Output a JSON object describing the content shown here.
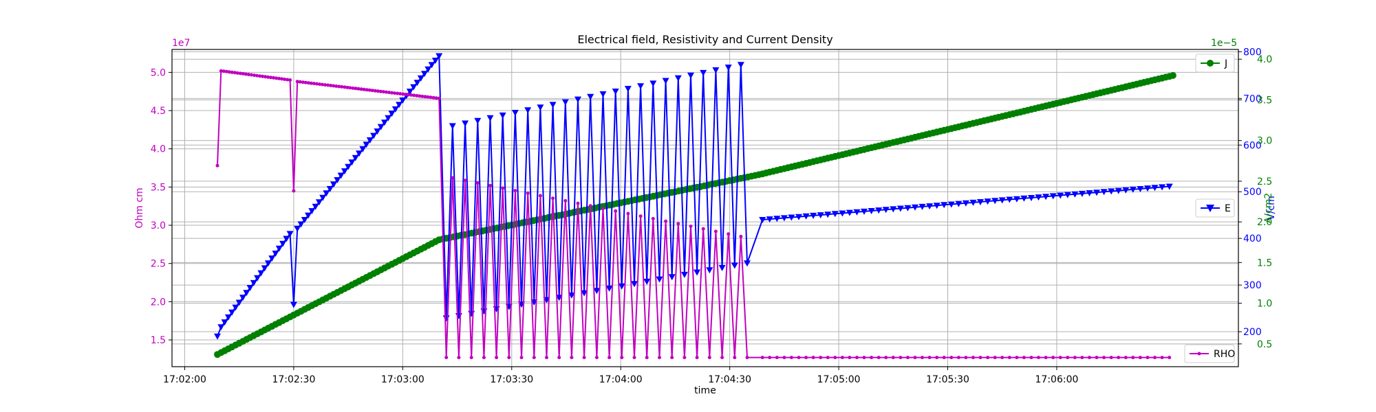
{
  "chart_data": {
    "type": "line",
    "title": "Electrical field, Resistivity and Current Density",
    "xlabel": "time",
    "x_tick_labels": [
      "17:02:00",
      "17:02:30",
      "17:03:00",
      "17:03:30",
      "17:04:00",
      "17:04:30",
      "17:05:00",
      "17:05:30",
      "17:06:00"
    ],
    "xlim_seconds_after_17_02_00": [
      -3.5,
      290
    ],
    "grid": true,
    "axes": {
      "rho": {
        "label": "Ohm cm",
        "scale_label": "1e7",
        "ylim": [
          1.15,
          5.3
        ],
        "ticks": [
          1.5,
          2.0,
          2.5,
          3.0,
          3.5,
          4.0,
          4.5,
          5.0
        ],
        "tick_labels": [
          "1.5",
          "2.0",
          "2.5",
          "3.0",
          "3.5",
          "4.0",
          "4.5",
          "5.0"
        ],
        "color": "#c000c0"
      },
      "E": {
        "label": "V/cm",
        "ylim": [
          125,
          805
        ],
        "ticks": [
          200,
          300,
          400,
          500,
          600,
          700,
          800
        ],
        "tick_labels": [
          "200",
          "300",
          "400",
          "500",
          "600",
          "700",
          "800"
        ],
        "color": "#0000ff"
      },
      "J": {
        "label": "A/cm2",
        "scale_label": "1e−5",
        "ylim": [
          0.22,
          4.12
        ],
        "ticks": [
          0.5,
          1.0,
          1.5,
          2.0,
          2.5,
          3.0,
          3.5,
          4.0
        ],
        "tick_labels": [
          "0.5",
          "1.0",
          "1.5",
          "2.0",
          "2.5",
          "3.0",
          "3.5",
          "4.0"
        ],
        "color": "#008000"
      }
    },
    "series": [
      {
        "name": "RHO",
        "axis": "rho",
        "color": "#c000c0",
        "marker": "point",
        "legend_position": "bottom-right",
        "description_note": "",
        "segments": [
          {
            "t0": 9,
            "t1": 9,
            "v": 3.78
          },
          {
            "t0": 10,
            "t1": 29,
            "v0": 5.02,
            "v1": 4.9
          },
          {
            "t0": 30,
            "t1": 30,
            "v": 3.45
          },
          {
            "t0": 31,
            "t1": 70,
            "v0": 4.88,
            "v1": 4.66
          }
        ],
        "oscillation": {
          "t_start": 72,
          "t_end": 158,
          "period": 3.45,
          "low": 1.27,
          "high_start": 3.62,
          "high_end": 2.82
        },
        "tail": {
          "t0": 159,
          "t1": 272,
          "v": 1.27
        }
      },
      {
        "name": "E",
        "axis": "E",
        "color": "#0000ff",
        "marker": "triangle-down",
        "legend_position": "center-right",
        "ramp": [
          {
            "t": 9,
            "v": 190
          },
          {
            "t": 10,
            "v": 210
          },
          {
            "t": 29,
            "v": 410
          },
          {
            "t": 30,
            "v": 258
          },
          {
            "t": 31,
            "v": 421
          },
          {
            "t": 70,
            "v": 791
          }
        ],
        "oscillation": {
          "t_start": 72,
          "t_end": 158,
          "period": 3.45,
          "low_start": 229,
          "low_end": 347,
          "high_start": 641,
          "high_end": 778
        },
        "tail": {
          "t0": 159,
          "t1": 272,
          "v0": 440,
          "v1": 512
        }
      },
      {
        "name": "J",
        "axis": "J",
        "color": "#008000",
        "marker": "circle",
        "legend_position": "top-right",
        "points": [
          {
            "t": 9,
            "v": 0.37
          },
          {
            "t": 70,
            "v": 1.78
          },
          {
            "t": 158,
            "v": 2.58
          },
          {
            "t": 272,
            "v": 3.8
          }
        ]
      }
    ]
  }
}
